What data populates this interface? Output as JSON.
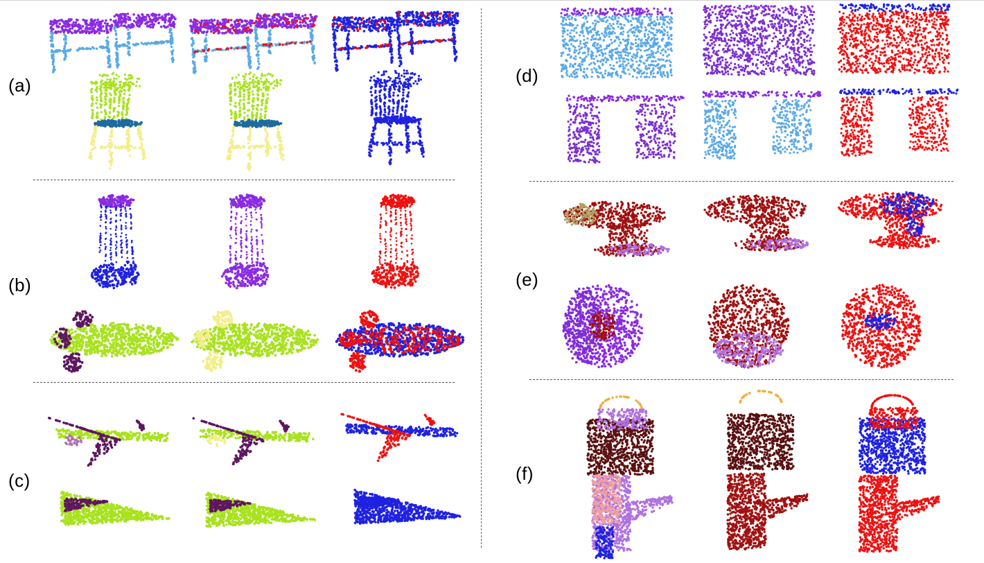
{
  "panels": {
    "a": {
      "label": "(a)"
    },
    "b": {
      "label": "(b)"
    },
    "c": {
      "label": "(c)"
    },
    "d": {
      "label": "(d)"
    },
    "e": {
      "label": "(e)"
    },
    "f": {
      "label": "(f)"
    }
  },
  "colors": {
    "purple": "#8a2be2",
    "light_blue": "#5aa9e6",
    "blue": "#1f22e0",
    "red": "#ee1111",
    "lime": "#a8e21e",
    "yellow": "#f2ee8a",
    "teal_blue": "#1e6aa0",
    "dark_purple": "#5e1660",
    "mauve": "#b070b0",
    "violet": "#7b2fd0",
    "dark_red": "#a01010",
    "maroon": "#5a1010",
    "orange": "#f0b040",
    "pink": "#f0a0a0",
    "olive": "#b0a060",
    "lavender": "#b070e0"
  }
}
